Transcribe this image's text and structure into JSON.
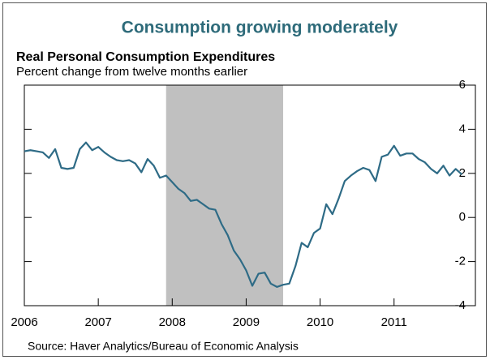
{
  "chart_data": {
    "type": "line",
    "title": "Consumption growing moderately",
    "subtitle": "Real Personal Consumption Expenditures",
    "y_axis_label": "Percent change from twelve months earlier",
    "source": "Source: Haver Analytics/Bureau of Economic Analysis",
    "recession": [
      2007.917,
      2009.5
    ],
    "recession_color": "#c0c0c0",
    "x": [
      2006.0,
      2006.083,
      2006.167,
      2006.25,
      2006.333,
      2006.417,
      2006.5,
      2006.583,
      2006.667,
      2006.75,
      2006.833,
      2006.917,
      2007.0,
      2007.083,
      2007.167,
      2007.25,
      2007.333,
      2007.417,
      2007.5,
      2007.583,
      2007.667,
      2007.75,
      2007.833,
      2007.917,
      2008.0,
      2008.083,
      2008.167,
      2008.25,
      2008.333,
      2008.417,
      2008.5,
      2008.583,
      2008.667,
      2008.75,
      2008.833,
      2008.917,
      2009.0,
      2009.083,
      2009.167,
      2009.25,
      2009.333,
      2009.417,
      2009.5,
      2009.583,
      2009.667,
      2009.75,
      2009.833,
      2009.917,
      2010.0,
      2010.083,
      2010.167,
      2010.25,
      2010.333,
      2010.417,
      2010.5,
      2010.583,
      2010.667,
      2010.75,
      2010.833,
      2010.917,
      2011.0,
      2011.083,
      2011.167,
      2011.25,
      2011.333,
      2011.417,
      2011.5,
      2011.583,
      2011.667,
      2011.75,
      2011.833,
      2011.917
    ],
    "series": [
      {
        "name": "Real PCE",
        "color": "#2e6b86",
        "values": [
          3.0,
          3.05,
          3.0,
          2.95,
          2.7,
          3.1,
          2.25,
          2.2,
          2.25,
          3.1,
          3.4,
          3.05,
          3.2,
          2.95,
          2.75,
          2.6,
          2.55,
          2.6,
          2.45,
          2.05,
          2.65,
          2.35,
          1.8,
          1.9,
          1.6,
          1.3,
          1.1,
          0.75,
          0.8,
          0.6,
          0.4,
          0.35,
          -0.3,
          -0.8,
          -1.5,
          -1.9,
          -2.4,
          -3.1,
          -2.55,
          -2.5,
          -3.0,
          -3.15,
          -3.05,
          -3.0,
          -2.2,
          -1.15,
          -1.35,
          -0.7,
          -0.5,
          0.6,
          0.15,
          0.85,
          1.65,
          1.9,
          2.1,
          2.25,
          2.15,
          1.65,
          2.75,
          2.85,
          3.25,
          2.8,
          2.9,
          2.9,
          2.65,
          2.5,
          2.2,
          2.0,
          2.35,
          1.9,
          2.2,
          1.95
        ]
      }
    ],
    "xlim": [
      2006,
      2012.1
    ],
    "xticks": [
      2006,
      2007,
      2008,
      2009,
      2010,
      2011
    ],
    "ylim": [
      -4,
      6
    ],
    "yticks": [
      -4,
      -2,
      0,
      2,
      4,
      6
    ]
  }
}
